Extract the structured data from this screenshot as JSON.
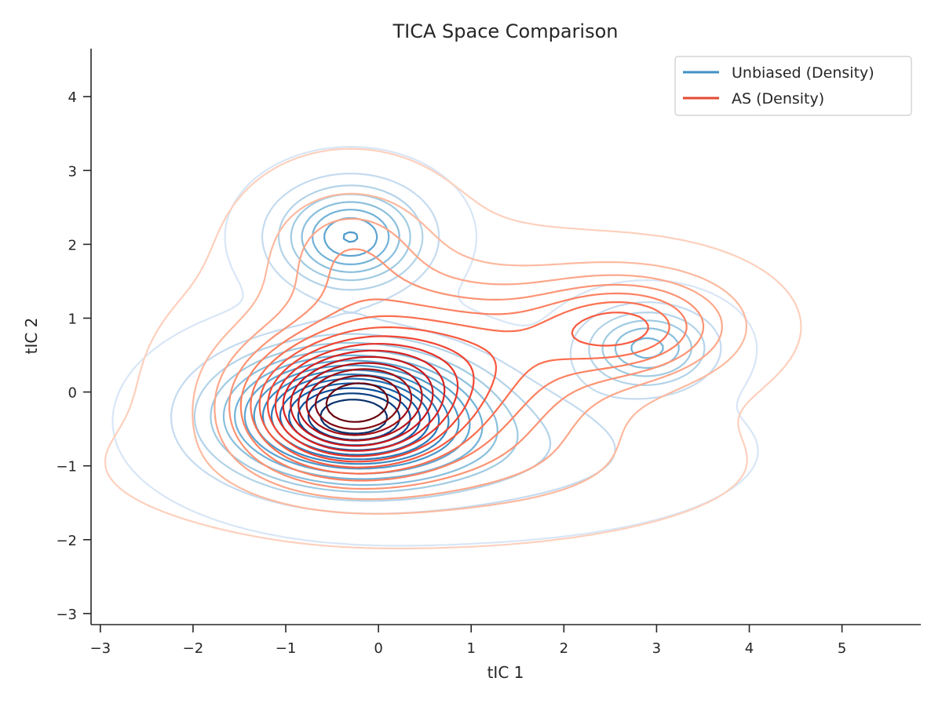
{
  "chart_data": {
    "type": "contour",
    "title": "TICA Space Comparison",
    "xlabel": "tIC 1",
    "ylabel": "tIC 2",
    "xlim": [
      -3.1,
      5.85
    ],
    "ylim": [
      -3.15,
      4.65
    ],
    "xticks": [
      -3,
      -2,
      -1,
      0,
      1,
      2,
      3,
      4,
      5
    ],
    "yticks": [
      -3,
      -2,
      -1,
      0,
      1,
      2,
      3,
      4
    ],
    "xtick_labels": [
      "−3",
      "−2",
      "−1",
      "0",
      "1",
      "2",
      "3",
      "4",
      "5"
    ],
    "ytick_labels": [
      "−3",
      "−2",
      "−1",
      "0",
      "1",
      "2",
      "3",
      "4"
    ],
    "grid": false,
    "legend_position": "top-right",
    "series": [
      {
        "name": "Unbiased (Density)",
        "legend_color": "#4292c6",
        "colormap": "Blues",
        "levels": 15,
        "components": [
          {
            "weight": 0.62,
            "mean": [
              -0.3,
              -0.3
            ],
            "sd": [
              0.85,
              0.55
            ],
            "rho": 0.0
          },
          {
            "weight": 0.15,
            "mean": [
              -0.3,
              2.1
            ],
            "sd": [
              0.5,
              0.45
            ],
            "rho": 0.0
          },
          {
            "weight": 0.08,
            "mean": [
              2.9,
              0.6
            ],
            "sd": [
              0.45,
              0.35
            ],
            "rho": 0.0
          },
          {
            "weight": 0.15,
            "mean": [
              1.0,
              -0.8
            ],
            "sd": [
              1.4,
              0.55
            ],
            "rho": 0.0
          }
        ]
      },
      {
        "name": "AS (Density)",
        "legend_color": "#e34a33",
        "colormap": "Reds",
        "levels": 15,
        "components": [
          {
            "weight": 0.32,
            "mean": [
              -0.35,
              -0.2
            ],
            "sd": [
              0.7,
              0.55
            ],
            "rho": 0.0
          },
          {
            "weight": 0.38,
            "mean": [
              0.65,
              0.35
            ],
            "sd": [
              1.15,
              0.75
            ],
            "rho": 0.0
          },
          {
            "weight": 0.13,
            "mean": [
              2.7,
              0.9
            ],
            "sd": [
              0.7,
              0.45
            ],
            "rho": 0.0
          },
          {
            "weight": 0.07,
            "mean": [
              -0.3,
              1.9
            ],
            "sd": [
              0.6,
              0.6
            ],
            "rho": 0.0
          },
          {
            "weight": 0.1,
            "mean": [
              0.5,
              -1.0
            ],
            "sd": [
              1.6,
              0.5
            ],
            "rho": 0.0
          }
        ]
      }
    ]
  }
}
